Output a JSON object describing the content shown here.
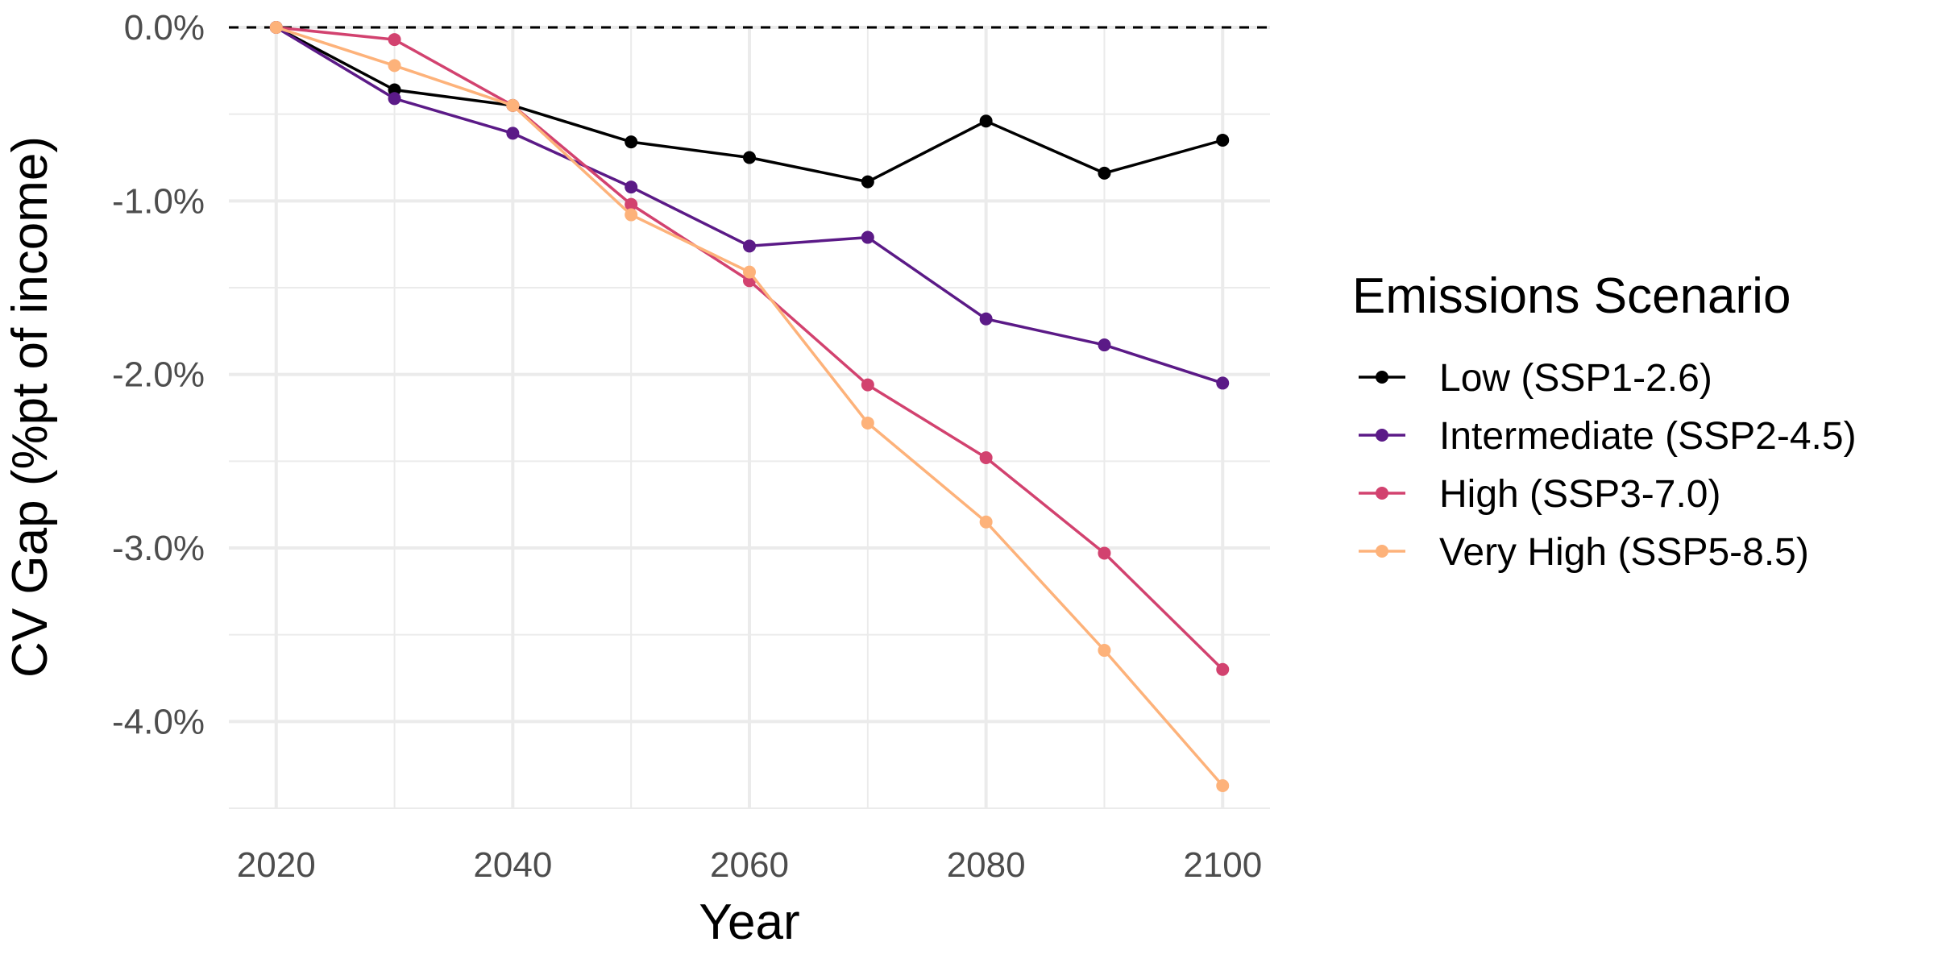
{
  "chart_data": {
    "type": "line",
    "x": [
      2020,
      2030,
      2040,
      2050,
      2060,
      2070,
      2080,
      2090,
      2100
    ],
    "xlabel": "Year",
    "ylabel": "CV Gap (%pt of income)",
    "xlim": [
      2016,
      2104
    ],
    "ylim": [
      -4.5,
      0.0
    ],
    "x_ticks": [
      2020,
      2040,
      2060,
      2080,
      2100
    ],
    "y_ticks": [
      0,
      -1,
      -2,
      -3,
      -4
    ],
    "y_tick_labels": [
      "0.0%",
      "-1.0%",
      "-2.0%",
      "-3.0%",
      "-4.0%"
    ],
    "reference_line": {
      "y": 0,
      "style": "dashed",
      "color": "#000000"
    },
    "grid": true,
    "legend": {
      "title": "Emissions Scenario",
      "position": "right"
    },
    "series": [
      {
        "name": "Low (SSP1-2.6)",
        "color": "#000000",
        "values": [
          0.0,
          -0.36,
          -0.45,
          -0.66,
          -0.75,
          -0.89,
          -0.54,
          -0.84,
          -0.65
        ]
      },
      {
        "name": "Intermediate (SSP2-4.5)",
        "color": "#5b1a87",
        "values": [
          0.0,
          -0.41,
          -0.61,
          -0.92,
          -1.26,
          -1.21,
          -1.68,
          -1.83,
          -2.05
        ]
      },
      {
        "name": "High (SSP3-7.0)",
        "color": "#d2426f",
        "values": [
          0.0,
          -0.07,
          -0.45,
          -1.02,
          -1.46,
          -2.06,
          -2.48,
          -3.03,
          -3.7
        ]
      },
      {
        "name": "Very High (SSP5-8.5)",
        "color": "#fdb27a",
        "values": [
          0.0,
          -0.22,
          -0.45,
          -1.08,
          -1.41,
          -2.28,
          -2.85,
          -3.59,
          -4.37
        ]
      }
    ]
  }
}
